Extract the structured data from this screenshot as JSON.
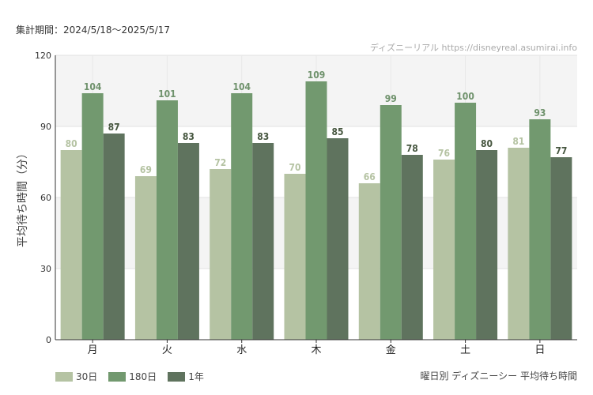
{
  "header": {
    "period": "集計期間：2024/5/18〜2025/5/17"
  },
  "credit": "ディズニーリアル https://disneyreal.asumirai.info",
  "chart_data": {
    "type": "bar",
    "title": "曜日別 ディズニーシー 平均待ち時間",
    "ylabel": "平均待ち時間（分）",
    "xlabel": "",
    "ylim": [
      0,
      120
    ],
    "yticks": [
      0,
      30,
      60,
      90,
      120
    ],
    "categories": [
      "月",
      "火",
      "水",
      "木",
      "金",
      "土",
      "日"
    ],
    "series": [
      {
        "name": "30日",
        "color": "#b5c3a3",
        "label_color": "#b5c3a3",
        "values": [
          80,
          69,
          72,
          70,
          66,
          76,
          81
        ]
      },
      {
        "name": "180日",
        "color": "#72996f",
        "label_color": "#6f926c",
        "values": [
          104,
          101,
          104,
          109,
          99,
          100,
          93
        ]
      },
      {
        "name": "1年",
        "color": "#5f735e",
        "label_color": "#46563f",
        "values": [
          87,
          83,
          83,
          85,
          78,
          80,
          77
        ]
      }
    ],
    "grid": true,
    "legend": "bottom-left"
  }
}
